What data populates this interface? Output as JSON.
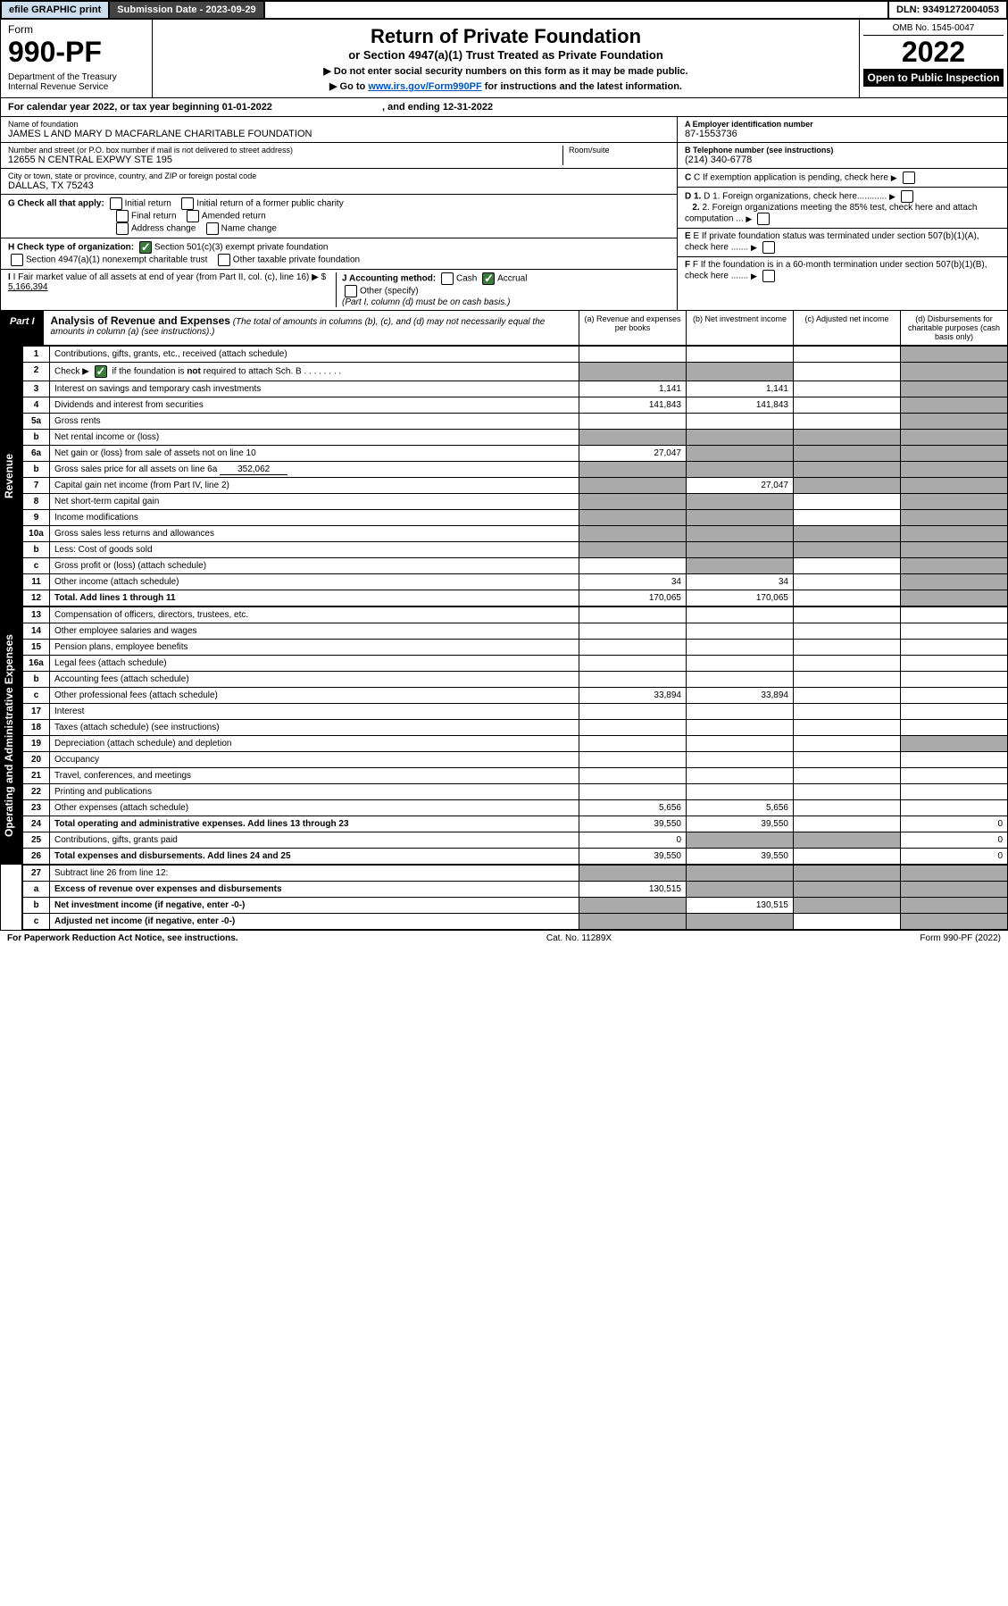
{
  "topbar": {
    "efile": "efile GRAPHIC print",
    "subdate_label": "Submission Date - ",
    "subdate": "2023-09-29",
    "dln_label": "DLN: ",
    "dln": "93491272004053"
  },
  "header": {
    "form_label": "Form",
    "form_num": "990-PF",
    "dept": "Department of the Treasury\nInternal Revenue Service",
    "title": "Return of Private Foundation",
    "subtitle": "or Section 4947(a)(1) Trust Treated as Private Foundation",
    "note1": "▶ Do not enter social security numbers on this form as it may be made public.",
    "note2_pre": "▶ Go to ",
    "note2_link": "www.irs.gov/Form990PF",
    "note2_post": " for instructions and the latest information.",
    "omb": "OMB No. 1545-0047",
    "year": "2022",
    "open": "Open to Public Inspection"
  },
  "cal": {
    "pre": "For calendar year 2022, or tax year beginning ",
    "begin": "01-01-2022",
    "mid": ", and ending ",
    "end": "12-31-2022"
  },
  "id": {
    "name_label": "Name of foundation",
    "name": "JAMES L AND MARY D MACFARLANE CHARITABLE FOUNDATION",
    "addr_label": "Number and street (or P.O. box number if mail is not delivered to street address)",
    "addr": "12655 N CENTRAL EXPWY STE 195",
    "room_label": "Room/suite",
    "city_label": "City or town, state or province, country, and ZIP or foreign postal code",
    "city": "DALLAS, TX  75243",
    "ein_label": "A Employer identification number",
    "ein": "87-1553736",
    "phone_label": "B Telephone number (see instructions)",
    "phone": "(214) 340-6778",
    "c": "C If exemption application is pending, check here",
    "d1": "D 1. Foreign organizations, check here............",
    "d2": "2. Foreign organizations meeting the 85% test, check here and attach computation ...",
    "e": "E  If private foundation status was terminated under section 507(b)(1)(A), check here .......",
    "f": "F  If the foundation is in a 60-month termination under section 507(b)(1)(B), check here .......",
    "g_label": "G Check all that apply:",
    "g_opts": [
      "Initial return",
      "Initial return of a former public charity",
      "Final return",
      "Amended return",
      "Address change",
      "Name change"
    ],
    "h_label": "H Check type of organization:",
    "h1": "Section 501(c)(3) exempt private foundation",
    "h2": "Section 4947(a)(1) nonexempt charitable trust",
    "h3": "Other taxable private foundation",
    "i_label": "I Fair market value of all assets at end of year (from Part II, col. (c), line 16) ▶ $ ",
    "i_val": "5,166,394",
    "j_label": "J Accounting method:",
    "j_opts": [
      "Cash",
      "Accrual"
    ],
    "j_other": "Other (specify)",
    "j_note": "(Part I, column (d) must be on cash basis.)"
  },
  "part1": {
    "label": "Part I",
    "title": "Analysis of Revenue and Expenses",
    "desc": " (The total of amounts in columns (b), (c), and (d) may not necessarily equal the amounts in column (a) (see instructions).)",
    "cols": [
      "(a)   Revenue and expenses per books",
      "(b)   Net investment income",
      "(c)   Adjusted net income",
      "(d)   Disbursements for charitable purposes (cash basis only)"
    ]
  },
  "sections": {
    "revenue": "Revenue",
    "expenses": "Operating and Administrative Expenses"
  },
  "rows": [
    {
      "n": "1",
      "t": "Contributions, gifts, grants, etc., received (attach schedule)",
      "a": "",
      "b": "",
      "c": "",
      "d": "",
      "dshade": true
    },
    {
      "n": "2",
      "t": "Check ▶ ☑ if the foundation is not required to attach Sch. B",
      "a": "",
      "b": "",
      "c": "",
      "d": "",
      "abshade": true,
      "dshade": true,
      "hasCheck": true
    },
    {
      "n": "3",
      "t": "Interest on savings and temporary cash investments",
      "a": "1,141",
      "b": "1,141",
      "c": "",
      "d": "",
      "dshade": true
    },
    {
      "n": "4",
      "t": "Dividends and interest from securities",
      "a": "141,843",
      "b": "141,843",
      "c": "",
      "d": "",
      "dshade": true
    },
    {
      "n": "5a",
      "t": "Gross rents",
      "a": "",
      "b": "",
      "c": "",
      "d": "",
      "dshade": true
    },
    {
      "n": "b",
      "t": "Net rental income or (loss)",
      "a": "",
      "b": "",
      "c": "",
      "d": "",
      "allshade": true
    },
    {
      "n": "6a",
      "t": "Net gain or (loss) from sale of assets not on line 10",
      "a": "27,047",
      "b": "",
      "c": "",
      "d": "",
      "bcdshade": true
    },
    {
      "n": "b",
      "t": "Gross sales price for all assets on line 6a",
      "inline": "352,062",
      "a": "",
      "b": "",
      "c": "",
      "d": "",
      "allshade": true
    },
    {
      "n": "7",
      "t": "Capital gain net income (from Part IV, line 2)",
      "a": "",
      "b": "27,047",
      "c": "",
      "d": "",
      "acdshade": true
    },
    {
      "n": "8",
      "t": "Net short-term capital gain",
      "a": "",
      "b": "",
      "c": "",
      "d": "",
      "abdshade": true
    },
    {
      "n": "9",
      "t": "Income modifications",
      "a": "",
      "b": "",
      "c": "",
      "d": "",
      "abdshade": true
    },
    {
      "n": "10a",
      "t": "Gross sales less returns and allowances",
      "a": "",
      "b": "",
      "c": "",
      "d": "",
      "allshade": true
    },
    {
      "n": "b",
      "t": "Less: Cost of goods sold",
      "a": "",
      "b": "",
      "c": "",
      "d": "",
      "allshade": true
    },
    {
      "n": "c",
      "t": "Gross profit or (loss) (attach schedule)",
      "a": "",
      "b": "",
      "c": "",
      "d": "",
      "bdshade": true
    },
    {
      "n": "11",
      "t": "Other income (attach schedule)",
      "a": "34",
      "b": "34",
      "c": "",
      "d": "",
      "dshade": true
    },
    {
      "n": "12",
      "t": "Total. Add lines 1 through 11",
      "a": "170,065",
      "b": "170,065",
      "c": "",
      "d": "",
      "dshade": true,
      "bold": true
    }
  ],
  "exp_rows": [
    {
      "n": "13",
      "t": "Compensation of officers, directors, trustees, etc.",
      "a": "",
      "b": "",
      "c": "",
      "d": ""
    },
    {
      "n": "14",
      "t": "Other employee salaries and wages",
      "a": "",
      "b": "",
      "c": "",
      "d": ""
    },
    {
      "n": "15",
      "t": "Pension plans, employee benefits",
      "a": "",
      "b": "",
      "c": "",
      "d": ""
    },
    {
      "n": "16a",
      "t": "Legal fees (attach schedule)",
      "a": "",
      "b": "",
      "c": "",
      "d": ""
    },
    {
      "n": "b",
      "t": "Accounting fees (attach schedule)",
      "a": "",
      "b": "",
      "c": "",
      "d": ""
    },
    {
      "n": "c",
      "t": "Other professional fees (attach schedule)",
      "a": "33,894",
      "b": "33,894",
      "c": "",
      "d": ""
    },
    {
      "n": "17",
      "t": "Interest",
      "a": "",
      "b": "",
      "c": "",
      "d": ""
    },
    {
      "n": "18",
      "t": "Taxes (attach schedule) (see instructions)",
      "a": "",
      "b": "",
      "c": "",
      "d": ""
    },
    {
      "n": "19",
      "t": "Depreciation (attach schedule) and depletion",
      "a": "",
      "b": "",
      "c": "",
      "d": "",
      "dshade": true
    },
    {
      "n": "20",
      "t": "Occupancy",
      "a": "",
      "b": "",
      "c": "",
      "d": ""
    },
    {
      "n": "21",
      "t": "Travel, conferences, and meetings",
      "a": "",
      "b": "",
      "c": "",
      "d": ""
    },
    {
      "n": "22",
      "t": "Printing and publications",
      "a": "",
      "b": "",
      "c": "",
      "d": ""
    },
    {
      "n": "23",
      "t": "Other expenses (attach schedule)",
      "a": "5,656",
      "b": "5,656",
      "c": "",
      "d": ""
    },
    {
      "n": "24",
      "t": "Total operating and administrative expenses. Add lines 13 through 23",
      "a": "39,550",
      "b": "39,550",
      "c": "",
      "d": "0",
      "bold": true
    },
    {
      "n": "25",
      "t": "Contributions, gifts, grants paid",
      "a": "0",
      "b": "",
      "c": "",
      "d": "0",
      "bcshade": true
    },
    {
      "n": "26",
      "t": "Total expenses and disbursements. Add lines 24 and 25",
      "a": "39,550",
      "b": "39,550",
      "c": "",
      "d": "0",
      "bold": true
    }
  ],
  "sub_rows": [
    {
      "n": "27",
      "t": "Subtract line 26 from line 12:",
      "a": "",
      "b": "",
      "c": "",
      "d": "",
      "allshade": true
    },
    {
      "n": "a",
      "t": "Excess of revenue over expenses and disbursements",
      "a": "130,515",
      "b": "",
      "c": "",
      "d": "",
      "bcdshade": true,
      "bold": true
    },
    {
      "n": "b",
      "t": "Net investment income (if negative, enter -0-)",
      "a": "",
      "b": "130,515",
      "c": "",
      "d": "",
      "acdshade": true,
      "bold": true
    },
    {
      "n": "c",
      "t": "Adjusted net income (if negative, enter -0-)",
      "a": "",
      "b": "",
      "c": "",
      "d": "",
      "abdshade": true,
      "bold": true
    }
  ],
  "footer": {
    "left": "For Paperwork Reduction Act Notice, see instructions.",
    "mid": "Cat. No. 11289X",
    "right": "Form 990-PF (2022)"
  }
}
